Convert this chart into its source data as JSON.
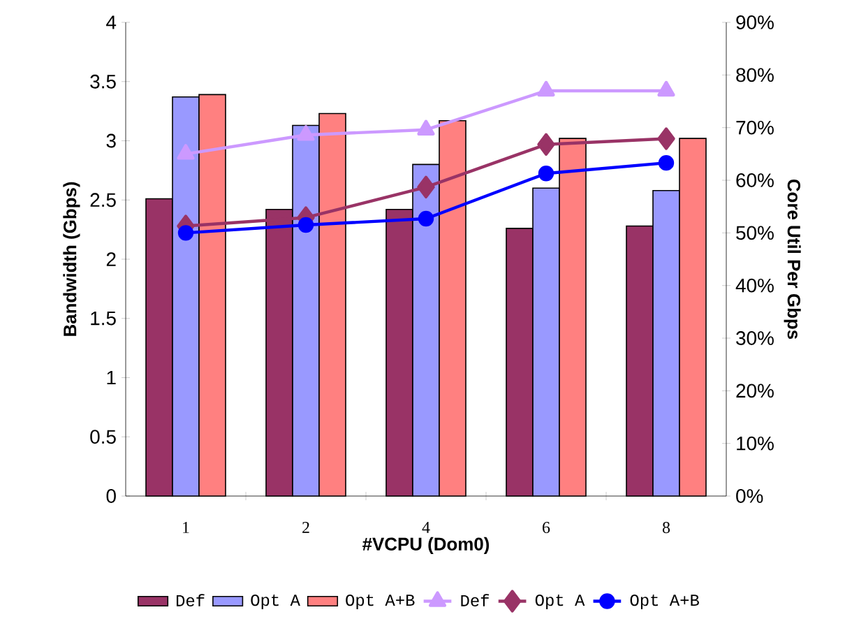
{
  "chart_data": {
    "type": "bar",
    "xlabel": "#VCPU (Dom0)",
    "ylabel": "Bandwidth (Gbps)",
    "y2label": "Core Util Per Gbps",
    "categories": [
      "1",
      "2",
      "4",
      "6",
      "8"
    ],
    "series": [
      {
        "name": "Def",
        "color": "#993366",
        "values": [
          2.51,
          2.42,
          2.42,
          2.26,
          2.28
        ]
      },
      {
        "name": "Opt A",
        "color": "#9999ff",
        "values": [
          3.37,
          3.13,
          2.8,
          2.6,
          2.58
        ]
      },
      {
        "name": "Opt A+B",
        "color": "#ff8080",
        "values": [
          3.39,
          3.23,
          3.17,
          3.02,
          3.02
        ]
      },
      {
        "name": "Def",
        "type": "line",
        "axis": "y2",
        "marker": "triangle",
        "color": "#cc99ff",
        "values": [
          65,
          68.6,
          69.6,
          77,
          77
        ]
      },
      {
        "name": "Opt A",
        "type": "line",
        "axis": "y2",
        "marker": "diamond",
        "color": "#993366",
        "values": [
          51.3,
          52.9,
          58.7,
          66.8,
          67.9
        ]
      },
      {
        "name": "Opt A+B",
        "type": "line",
        "axis": "y2",
        "marker": "circle",
        "color": "#0000ff",
        "values": [
          50,
          51.5,
          52.7,
          61.3,
          63.3
        ]
      }
    ],
    "ylim": [
      0,
      4
    ],
    "yticks": [
      0,
      0.5,
      1,
      1.5,
      2,
      2.5,
      3,
      3.5,
      4
    ],
    "y2lim": [
      0,
      90
    ],
    "y2ticks": [
      {
        "value": 0,
        "label": "0%"
      },
      {
        "value": 10,
        "label": "10%"
      },
      {
        "value": 20,
        "label": "20%"
      },
      {
        "value": 30,
        "label": "30%"
      },
      {
        "value": 40,
        "label": "40%"
      },
      {
        "value": 50,
        "label": "50%"
      },
      {
        "value": 60,
        "label": "60%"
      },
      {
        "value": 70,
        "label": "70%"
      },
      {
        "value": 80,
        "label": "80%"
      },
      {
        "value": 90,
        "label": "90%"
      }
    ],
    "legend": "bottom",
    "grid": false,
    "line_style": "solid"
  }
}
